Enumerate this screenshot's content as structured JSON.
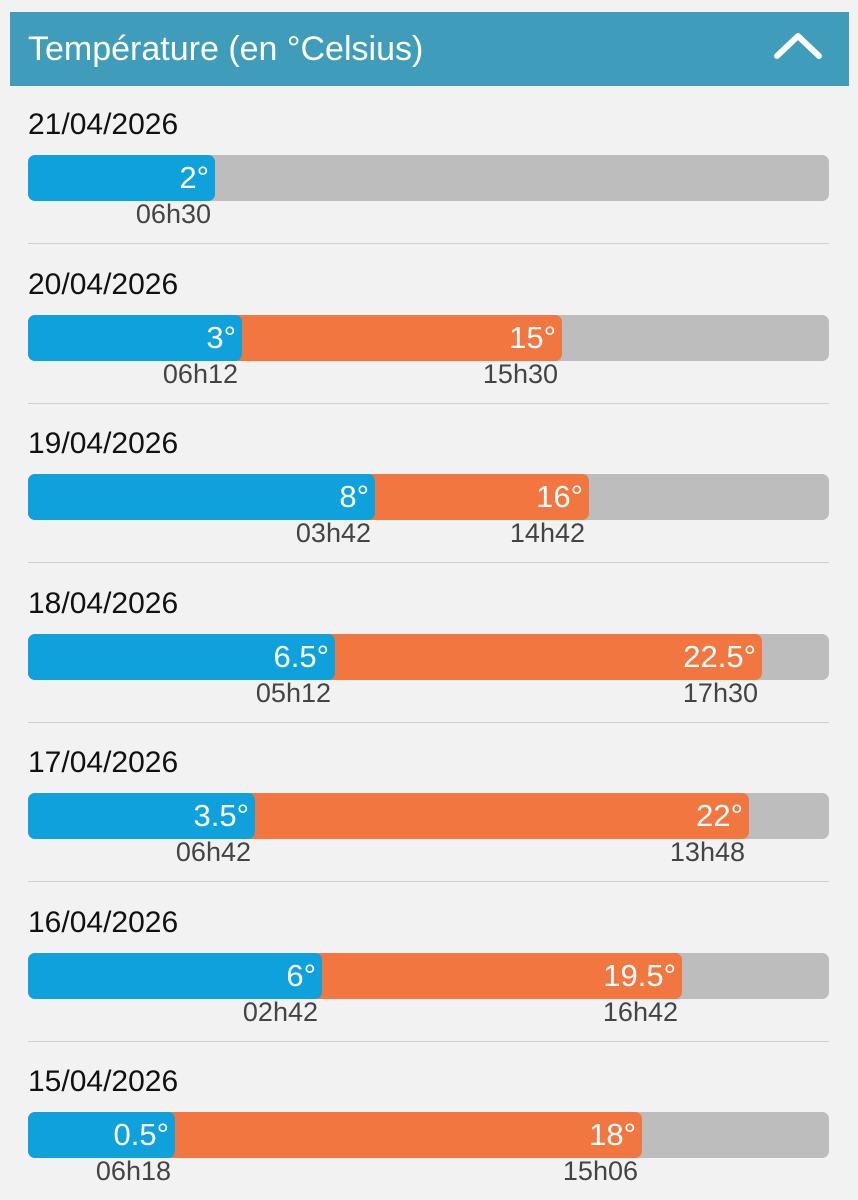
{
  "header": {
    "title": "Température (en °Celsius)",
    "collapse_icon": "chevron-up-icon"
  },
  "colors": {
    "header": "#3f9dbb",
    "min": "#0ea1dc",
    "max": "#f2763f",
    "track": "#bdbdbd"
  },
  "scale": {
    "min": -5,
    "max": 25
  },
  "days": [
    {
      "date": "21/04/2026",
      "min_value": 2,
      "min_label": "2°",
      "min_time": "06h30",
      "max_value": null,
      "max_label": "",
      "max_time": ""
    },
    {
      "date": "20/04/2026",
      "min_value": 3,
      "min_label": "3°",
      "min_time": "06h12",
      "max_value": 15,
      "max_label": "15°",
      "max_time": "15h30"
    },
    {
      "date": "19/04/2026",
      "min_value": 8,
      "min_label": "8°",
      "min_time": "03h42",
      "max_value": 16,
      "max_label": "16°",
      "max_time": "14h42"
    },
    {
      "date": "18/04/2026",
      "min_value": 6.5,
      "min_label": "6.5°",
      "min_time": "05h12",
      "max_value": 22.5,
      "max_label": "22.5°",
      "max_time": "17h30"
    },
    {
      "date": "17/04/2026",
      "min_value": 3.5,
      "min_label": "3.5°",
      "min_time": "06h42",
      "max_value": 22,
      "max_label": "22°",
      "max_time": "13h48"
    },
    {
      "date": "16/04/2026",
      "min_value": 6,
      "min_label": "6°",
      "min_time": "02h42",
      "max_value": 19.5,
      "max_label": "19.5°",
      "max_time": "16h42"
    },
    {
      "date": "15/04/2026",
      "min_value": 0.5,
      "min_label": "0.5°",
      "min_time": "06h18",
      "max_value": 18,
      "max_label": "18°",
      "max_time": "15h06"
    }
  ]
}
